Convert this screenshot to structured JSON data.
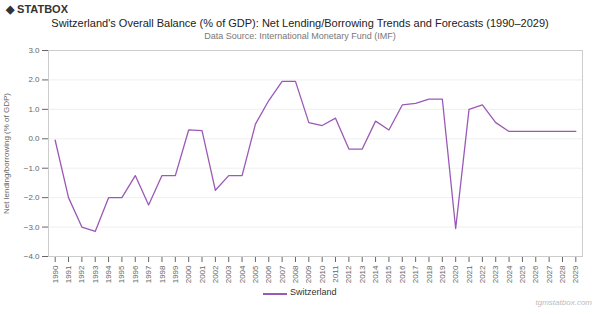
{
  "chart_data": {
    "type": "line",
    "title": "Switzerland's Overall Balance (% of GDP): Net Lending/Borrowing Trends and Forecasts (1990–2029)",
    "subtitle": "Data Source: International Monetary Fund (IMF)",
    "ylabel": "Net lending/borrowing (% of GDP)",
    "annotations": [
      "◆ STATBOX",
      "tgmstatbox.com"
    ],
    "x": [
      1990,
      1991,
      1992,
      1993,
      1994,
      1995,
      1996,
      1997,
      1998,
      1999,
      2000,
      2001,
      2002,
      2003,
      2004,
      2005,
      2006,
      2007,
      2008,
      2009,
      2010,
      2011,
      2012,
      2013,
      2014,
      2015,
      2016,
      2017,
      2018,
      2019,
      2020,
      2021,
      2022,
      2023,
      2024,
      2025,
      2026,
      2027,
      2028,
      2029
    ],
    "series": [
      {
        "name": "Switzerland",
        "color": "#9b59b6",
        "values": [
          -0.05,
          -2.0,
          -3.0,
          -3.15,
          -2.0,
          -2.0,
          -1.25,
          -2.25,
          -1.25,
          -1.25,
          0.3,
          0.28,
          -1.75,
          -1.25,
          -1.25,
          0.5,
          1.3,
          1.95,
          1.95,
          0.55,
          0.45,
          0.7,
          -0.35,
          -0.35,
          0.6,
          0.3,
          1.15,
          1.2,
          1.35,
          1.35,
          -3.05,
          1.0,
          1.15,
          0.55,
          0.25,
          0.25,
          0.25,
          0.25,
          0.25,
          0.25
        ]
      }
    ],
    "xlim": [
      1989.5,
      2029.5
    ],
    "xticks": [
      1990,
      1991,
      1992,
      1993,
      1994,
      1995,
      1996,
      1997,
      1998,
      1999,
      2000,
      2001,
      2002,
      2003,
      2004,
      2005,
      2006,
      2007,
      2008,
      2009,
      2010,
      2011,
      2012,
      2013,
      2014,
      2015,
      2016,
      2017,
      2018,
      2019,
      2020,
      2021,
      2022,
      2023,
      2024,
      2025,
      2026,
      2027,
      2028,
      2029
    ],
    "ylim": [
      -4,
      3
    ],
    "yticks": [
      -4,
      -3,
      -2,
      -1,
      0,
      1,
      2,
      3
    ],
    "grid": true,
    "legend": "bottom"
  }
}
